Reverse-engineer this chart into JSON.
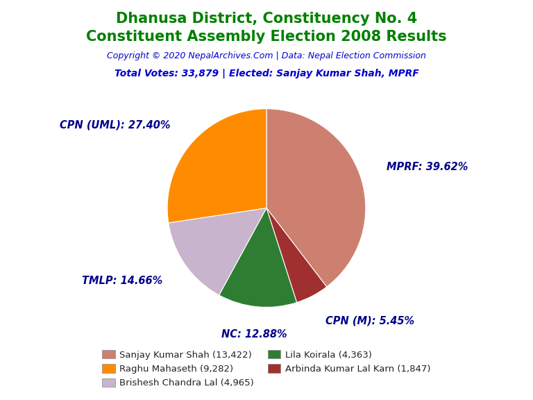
{
  "title_line1": "Dhanusa District, Constituency No. 4",
  "title_line2": "Constituent Assembly Election 2008 Results",
  "title_color": "#008000",
  "copyright_text": "Copyright © 2020 NepalArchives.Com | Data: Nepal Election Commission",
  "copyright_color": "#0000CD",
  "total_votes_text": "Total Votes: 33,879 | Elected: Sanjay Kumar Shah, MPRF",
  "total_votes_color": "#0000CD",
  "slices": [
    {
      "label": "MPRF",
      "pct": 39.62,
      "color": "#CD8070"
    },
    {
      "label": "CPN (M)",
      "pct": 5.45,
      "color": "#A03030"
    },
    {
      "label": "NC",
      "pct": 12.88,
      "color": "#2E7D32"
    },
    {
      "label": "TMLP",
      "pct": 14.66,
      "color": "#C8B4CC"
    },
    {
      "label": "CPN (UML)",
      "pct": 27.4,
      "color": "#FF8C00"
    }
  ],
  "label_color": "#00008B",
  "background_color": "#FFFFFF",
  "legend_entries": [
    {
      "name": "Sanjay Kumar Shah (13,422)",
      "color": "#CD8070"
    },
    {
      "name": "Raghu Mahaseth (9,282)",
      "color": "#FF8C00"
    },
    {
      "name": "Brishesh Chandra Lal (4,965)",
      "color": "#C8B4CC"
    },
    {
      "name": "Lila Koirala (4,363)",
      "color": "#2E7D32"
    },
    {
      "name": "Arbinda Kumar Lal Karn (1,847)",
      "color": "#A03030"
    }
  ]
}
